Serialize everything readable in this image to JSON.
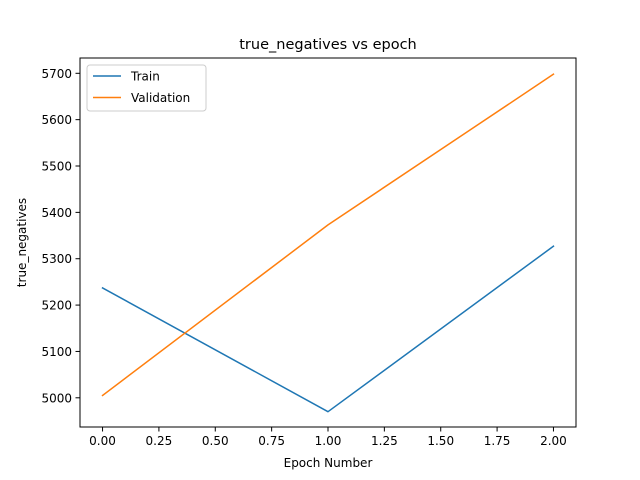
{
  "chart_data": {
    "type": "line",
    "title": "true_negatives vs epoch",
    "xlabel": "Epoch Number",
    "ylabel": "true_negatives",
    "x": [
      0,
      1,
      2
    ],
    "xlim": [
      -0.1,
      2.1
    ],
    "ylim": [
      4937,
      5733
    ],
    "xticks": [
      0.0,
      0.25,
      0.5,
      0.75,
      1.0,
      1.25,
      1.5,
      1.75,
      2.0
    ],
    "xtick_labels": [
      "0.00",
      "0.25",
      "0.50",
      "0.75",
      "1.00",
      "1.25",
      "1.50",
      "1.75",
      "2.00"
    ],
    "yticks": [
      5000,
      5100,
      5200,
      5300,
      5400,
      5500,
      5600,
      5700
    ],
    "ytick_labels": [
      "5000",
      "5100",
      "5200",
      "5300",
      "5400",
      "5500",
      "5600",
      "5700"
    ],
    "grid": false,
    "legend_position": "upper-left",
    "series": [
      {
        "name": "Train",
        "color": "#1f77b4",
        "values": [
          5237,
          4970,
          5327
        ]
      },
      {
        "name": "Validation",
        "color": "#ff7f0e",
        "values": [
          5005,
          5373,
          5698
        ]
      }
    ]
  }
}
